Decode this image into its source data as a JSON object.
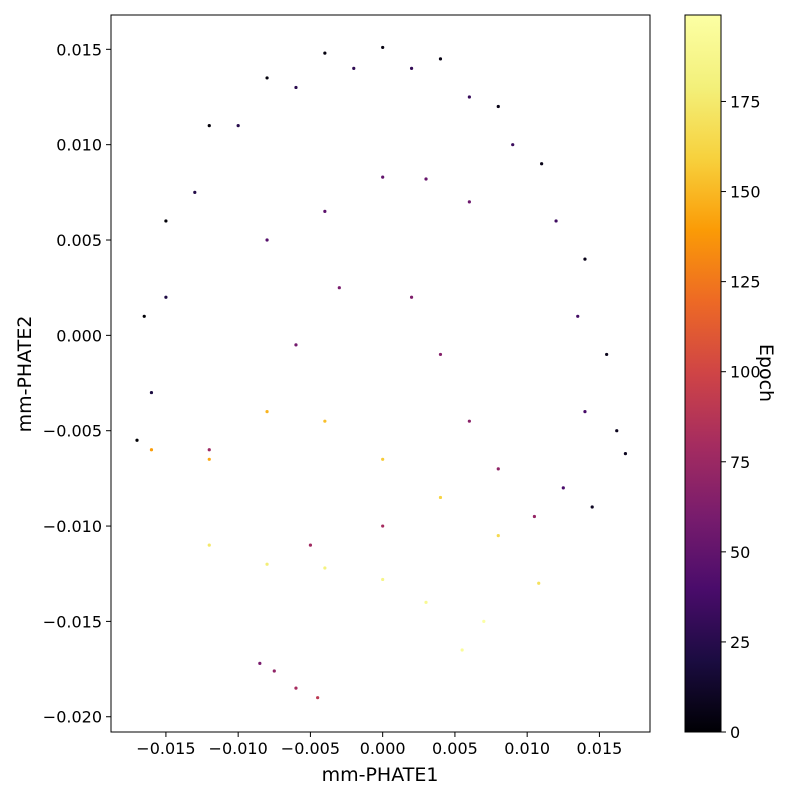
{
  "chart_data": {
    "type": "scatter",
    "title": "",
    "xlabel": "mm-PHATE1",
    "ylabel": "mm-PHATE2",
    "xlim": [
      -0.0188,
      0.0185
    ],
    "ylim": [
      -0.0208,
      0.0168
    ],
    "x_ticks": [
      -0.015,
      -0.01,
      -0.005,
      0.0,
      0.005,
      0.01,
      0.015
    ],
    "x_tick_labels": [
      "−0.015",
      "−0.010",
      "−0.005",
      "0.000",
      "0.005",
      "0.010",
      "0.015"
    ],
    "y_ticks": [
      0.015,
      0.01,
      0.005,
      0.0,
      -0.005,
      -0.01,
      -0.015,
      -0.02
    ],
    "y_tick_labels": [
      "0.015",
      "0.010",
      "0.005",
      "0.000",
      "−0.005",
      "−0.010",
      "−0.015",
      "−0.020"
    ],
    "colorbar": {
      "label": "Epoch",
      "colormap": "inferno",
      "range": [
        0,
        199
      ],
      "ticks": [
        0,
        25,
        50,
        75,
        100,
        125,
        150,
        175
      ],
      "tick_labels": [
        "0",
        "25",
        "50",
        "75",
        "100",
        "125",
        "150",
        "175"
      ]
    },
    "grid": false,
    "series": [
      {
        "epochs": [
          0,
          10
        ],
        "points": [
          [
            -0.017,
            -0.0055
          ],
          [
            -0.0165,
            0.001
          ],
          [
            -0.015,
            0.006
          ],
          [
            -0.012,
            0.011
          ],
          [
            -0.008,
            0.0135
          ],
          [
            -0.004,
            0.0148
          ],
          [
            0.0,
            0.0151
          ],
          [
            0.004,
            0.0145
          ],
          [
            0.008,
            0.012
          ],
          [
            0.011,
            0.009
          ],
          [
            0.014,
            0.004
          ],
          [
            0.0155,
            -0.001
          ],
          [
            0.0162,
            -0.005
          ],
          [
            0.0168,
            -0.0062
          ],
          [
            0.0145,
            -0.009
          ]
        ]
      },
      {
        "epochs": [
          20,
          40
        ],
        "points": [
          [
            -0.016,
            -0.003
          ],
          [
            -0.015,
            0.002
          ],
          [
            -0.013,
            0.0075
          ],
          [
            -0.01,
            0.011
          ],
          [
            -0.006,
            0.013
          ],
          [
            -0.002,
            0.014
          ],
          [
            0.002,
            0.014
          ],
          [
            0.006,
            0.0125
          ],
          [
            0.009,
            0.01
          ],
          [
            0.012,
            0.006
          ],
          [
            0.0135,
            0.001
          ],
          [
            0.014,
            -0.004
          ],
          [
            0.0125,
            -0.008
          ]
        ]
      },
      {
        "epochs": [
          45,
          80
        ],
        "points": [
          [
            -0.008,
            0.005
          ],
          [
            -0.004,
            0.0065
          ],
          [
            0.0,
            0.0083
          ],
          [
            0.003,
            0.0082
          ],
          [
            0.006,
            0.007
          ],
          [
            -0.006,
            -0.0005
          ],
          [
            -0.003,
            0.0025
          ],
          [
            0.002,
            0.002
          ],
          [
            0.004,
            -0.001
          ],
          [
            0.006,
            -0.0045
          ],
          [
            0.008,
            -0.007
          ],
          [
            0.0105,
            -0.0095
          ],
          [
            -0.012,
            -0.006
          ],
          [
            -0.005,
            -0.011
          ],
          [
            0.0,
            -0.01
          ]
        ]
      },
      {
        "epochs": [
          140,
          199
        ],
        "points": [
          [
            -0.016,
            -0.006
          ],
          [
            -0.012,
            -0.0065
          ],
          [
            -0.008,
            -0.004
          ],
          [
            -0.004,
            -0.0045
          ],
          [
            0.0,
            -0.0065
          ],
          [
            0.004,
            -0.0085
          ],
          [
            0.008,
            -0.0105
          ],
          [
            0.0108,
            -0.013
          ],
          [
            -0.012,
            -0.011
          ],
          [
            -0.008,
            -0.012
          ],
          [
            -0.004,
            -0.0122
          ],
          [
            0.0,
            -0.0128
          ],
          [
            0.003,
            -0.014
          ],
          [
            0.0055,
            -0.0165
          ],
          [
            0.007,
            -0.015
          ]
        ]
      },
      {
        "epochs": [
          60,
          90
        ],
        "points": [
          [
            -0.0085,
            -0.0172
          ],
          [
            -0.0075,
            -0.0176
          ],
          [
            -0.006,
            -0.0185
          ],
          [
            -0.0045,
            -0.019
          ]
        ]
      }
    ]
  }
}
